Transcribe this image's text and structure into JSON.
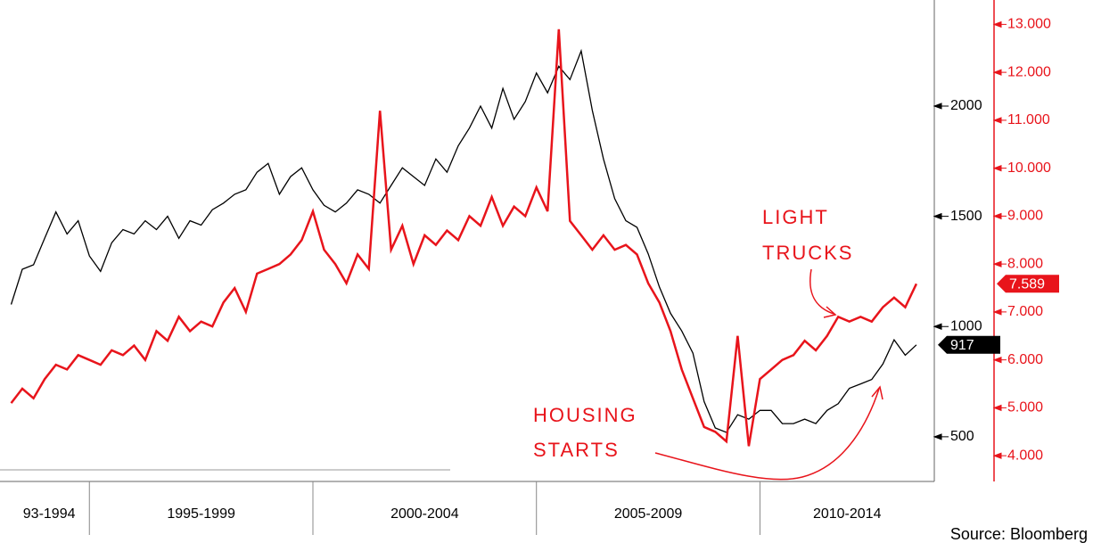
{
  "chart_data": {
    "type": "line",
    "x": [
      1993.25,
      1993.5,
      1993.75,
      1994,
      1994.25,
      1994.5,
      1994.75,
      1995,
      1995.25,
      1995.5,
      1995.75,
      1996,
      1996.25,
      1996.5,
      1996.75,
      1997,
      1997.25,
      1997.5,
      1997.75,
      1998,
      1998.25,
      1998.5,
      1998.75,
      1999,
      1999.25,
      1999.5,
      1999.75,
      2000,
      2000.25,
      2000.5,
      2000.75,
      2001,
      2001.25,
      2001.5,
      2001.75,
      2002,
      2002.25,
      2002.5,
      2002.75,
      2003,
      2003.25,
      2003.5,
      2003.75,
      2004,
      2004.25,
      2004.5,
      2004.75,
      2005,
      2005.25,
      2005.5,
      2005.75,
      2006,
      2006.25,
      2006.5,
      2006.75,
      2007,
      2007.25,
      2007.5,
      2007.75,
      2008,
      2008.25,
      2008.5,
      2008.75,
      2009,
      2009.25,
      2009.5,
      2009.75,
      2010,
      2010.25,
      2010.5,
      2010.75,
      2011,
      2011.25,
      2011.5,
      2011.75,
      2012,
      2012.25,
      2012.5,
      2012.75,
      2013,
      2013.25,
      2013.5
    ],
    "series": [
      {
        "color": "#000000",
        "last_value": 917,
        "values": [
          1100,
          1260,
          1280,
          1400,
          1520,
          1420,
          1480,
          1320,
          1250,
          1380,
          1440,
          1420,
          1480,
          1440,
          1500,
          1400,
          1480,
          1460,
          1530,
          1560,
          1600,
          1620,
          1700,
          1740,
          1600,
          1680,
          1720,
          1620,
          1550,
          1520,
          1560,
          1620,
          1600,
          1560,
          1640,
          1720,
          1680,
          1640,
          1760,
          1700,
          1820,
          1900,
          2000,
          1900,
          2080,
          1940,
          2020,
          2150,
          2060,
          2180,
          2120,
          2250,
          1980,
          1760,
          1580,
          1480,
          1450,
          1330,
          1180,
          1060,
          980,
          880,
          660,
          540,
          520,
          600,
          580,
          620,
          620,
          560,
          560,
          580,
          560,
          620,
          650,
          720,
          740,
          760,
          830,
          940,
          870,
          917
        ]
      },
      {
        "color": "#e8141b",
        "axis": "y2",
        "last_value": 7.589,
        "values": [
          5.1,
          5.4,
          5.2,
          5.6,
          5.9,
          5.8,
          6.1,
          6.0,
          5.9,
          6.2,
          6.1,
          6.3,
          6.0,
          6.6,
          6.4,
          6.9,
          6.6,
          6.8,
          6.7,
          7.2,
          7.5,
          7.0,
          7.8,
          7.9,
          8.0,
          8.2,
          8.5,
          9.1,
          8.3,
          8.0,
          7.6,
          8.2,
          7.9,
          11.2,
          8.3,
          8.8,
          8.0,
          8.6,
          8.4,
          8.7,
          8.5,
          9.0,
          8.8,
          9.4,
          8.8,
          9.2,
          9.0,
          9.6,
          9.1,
          12.9,
          8.9,
          8.6,
          8.3,
          8.6,
          8.3,
          8.4,
          8.2,
          7.6,
          7.2,
          6.6,
          5.8,
          5.2,
          4.6,
          4.5,
          4.3,
          6.5,
          4.2,
          5.6,
          5.8,
          6.0,
          6.1,
          6.4,
          6.2,
          6.5,
          6.9,
          6.8,
          6.9,
          6.8,
          7.1,
          7.3,
          7.1,
          7.589
        ]
      }
    ],
    "xlim": [
      1993.2,
      2013.9
    ],
    "xticks": [
      1995,
      2000,
      2005,
      2010
    ],
    "categories": [
      "93-1994",
      "1995-1999",
      "2000-2004",
      "2005-2009",
      "2010-2014"
    ],
    "ylim": [
      338,
      2481
    ],
    "yticks": [
      500,
      1000,
      1500,
      2000
    ],
    "y2lim": [
      3.65,
      13.51
    ],
    "y2ticks": [
      {
        "value": 4,
        "label": "4.000"
      },
      {
        "value": 5,
        "label": "5.000"
      },
      {
        "value": 6,
        "label": "6.000"
      },
      {
        "value": 7,
        "label": "7.000"
      },
      {
        "value": 8,
        "label": "8.000"
      },
      {
        "value": 9,
        "label": "9.000"
      },
      {
        "value": 10,
        "label": "10.000"
      },
      {
        "value": 11,
        "label": "11.000"
      },
      {
        "value": 12,
        "label": "12.000"
      },
      {
        "value": 13,
        "label": "13.000"
      }
    ],
    "annotations": [
      "LIGHT",
      "TRUCKS",
      "HOUSING",
      "STARTS"
    ],
    "source": "Source: Bloomberg"
  }
}
